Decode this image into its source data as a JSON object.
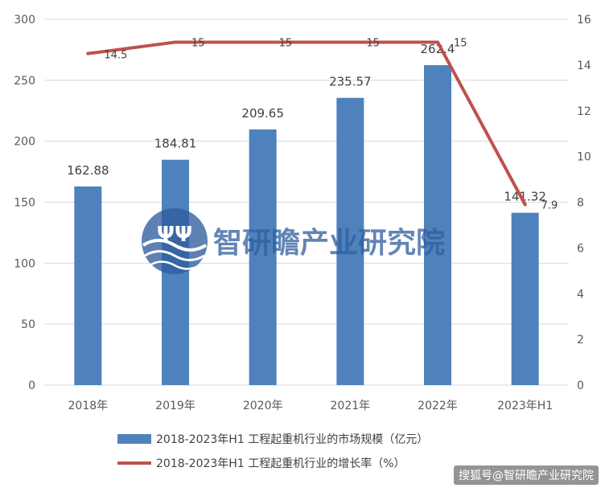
{
  "chart_data": {
    "type": "bar",
    "categories": [
      "2018年",
      "2019年",
      "2020年",
      "2021年",
      "2022年",
      "2023年H1"
    ],
    "series": [
      {
        "name": "2018-2023年H1 工程起重机行业的市场规模（亿元）",
        "type": "bar",
        "axis": "left",
        "color": "#4f81bd",
        "values": [
          162.88,
          184.81,
          209.65,
          235.57,
          262.4,
          141.32
        ],
        "labels": [
          "162.88",
          "184.81",
          "209.65",
          "235.57",
          "262.4",
          "141.32"
        ]
      },
      {
        "name": "2018-2023年H1 工程起重机行业的增长率（%）",
        "type": "line",
        "axis": "right",
        "color": "#c0504d",
        "values": [
          14.5,
          15,
          15,
          15,
          15,
          7.9
        ],
        "labels": [
          "14.5",
          "15",
          "15",
          "15",
          "15",
          "7.9"
        ]
      }
    ],
    "y_left": {
      "min": 0,
      "max": 300,
      "ticks": [
        "0",
        "50",
        "100",
        "150",
        "200",
        "250",
        "300"
      ]
    },
    "y_right": {
      "min": 0,
      "max": 16,
      "ticks": [
        "0",
        "2",
        "4",
        "6",
        "8",
        "10",
        "12",
        "14",
        "16"
      ]
    },
    "grid": true,
    "legend_position": "bottom"
  },
  "watermark": {
    "text": "智研瞻产业研究院",
    "logo_text": "ΨΨ",
    "logo_icon": "wave-globe-icon",
    "color": "#2f5d9e"
  },
  "corner_watermark": "搜狐号@智研瞻产业研究院"
}
